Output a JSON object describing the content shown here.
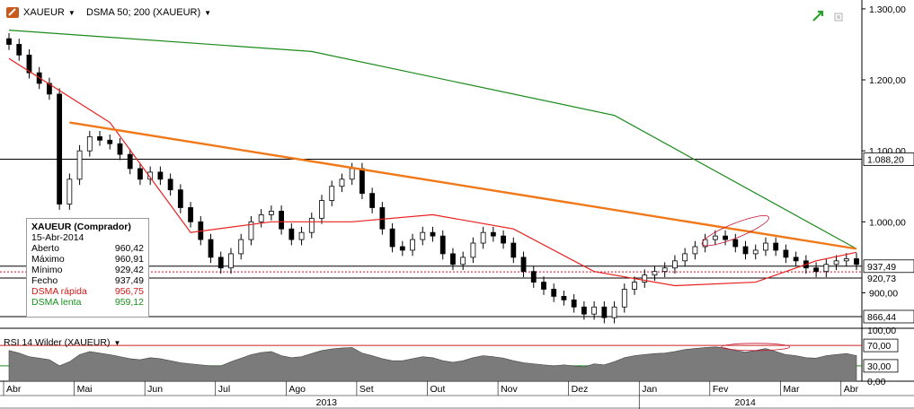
{
  "header": {
    "symbol": "XAUEUR",
    "indicator": "DSMA 50; 200 (XAUEUR)",
    "dropdown_icon": "triangle-down-icon",
    "symbol_icon": "pencil-chart-icon",
    "expand_icon": "green-arrow-icon",
    "window_icon": "restore-icon"
  },
  "info_box": {
    "title": "XAUEUR (Comprador)",
    "date": "15-Abr-2014",
    "rows": [
      {
        "label": "Aberto",
        "value": "960,42",
        "color": "#000000"
      },
      {
        "label": "Máximo",
        "value": "960,91",
        "color": "#000000"
      },
      {
        "label": "Mínimo",
        "value": "929,42",
        "color": "#000000"
      },
      {
        "label": "Fecho",
        "value": "937,49",
        "color": "#000000"
      },
      {
        "label": "DSMA rápida",
        "value": "956,75",
        "color": "#d01818"
      },
      {
        "label": "DSMA lenta",
        "value": "959,12",
        "color": "#18901c"
      }
    ]
  },
  "rsi_panel": {
    "title": "RSI 14 Wilder (XAUEUR)",
    "levels": [
      "100,00",
      "70,00",
      "30,00",
      "0,00"
    ]
  },
  "colors": {
    "fast_ma": "#e8211f",
    "slow_ma": "#1b8a1b",
    "trendline": "#f07818",
    "rsi_fill": "#7b7b7b",
    "highlight": "#c8102e"
  },
  "chart_data": {
    "type": "candlestick",
    "title": "XAUEUR",
    "ylim": [
      850,
      1310
    ],
    "y_ticks": [
      "1.300,00",
      "1.200,00",
      "1.100,00",
      "1.000,00",
      "900,00"
    ],
    "y_tick_values": [
      1300,
      1200,
      1100,
      1000,
      900
    ],
    "price_labels": [
      {
        "value": 1088.2,
        "text": "1.088,20",
        "style": "boxed"
      },
      {
        "value": 937.49,
        "text": "937,49",
        "style": "boxed"
      },
      {
        "value": 920.73,
        "text": "920,73",
        "style": "plain"
      },
      {
        "value": 866.44,
        "text": "866,44",
        "style": "boxed"
      }
    ],
    "horizontal_lines": [
      1088.2,
      937.49,
      920.73,
      866.44
    ],
    "x_months": [
      "Abr",
      "Mai",
      "Jun",
      "Jul",
      "Ago",
      "Set",
      "Out",
      "Nov",
      "Dez",
      "Jan",
      "Fev",
      "Mar",
      "Abr"
    ],
    "x_years": [
      "2013",
      "2014"
    ],
    "close_series": [
      1250,
      1235,
      1210,
      1195,
      1180,
      1025,
      1060,
      1100,
      1120,
      1115,
      1110,
      1095,
      1075,
      1060,
      1070,
      1060,
      1045,
      1020,
      1000,
      975,
      950,
      935,
      955,
      975,
      1000,
      1010,
      1015,
      990,
      975,
      985,
      1005,
      1030,
      1050,
      1060,
      1075,
      1040,
      1020,
      990,
      965,
      960,
      975,
      985,
      980,
      955,
      940,
      950,
      970,
      985,
      980,
      970,
      950,
      930,
      915,
      905,
      895,
      890,
      880,
      870,
      880,
      865,
      880,
      905,
      915,
      925,
      930,
      935,
      945,
      955,
      965,
      975,
      980,
      975,
      965,
      955,
      960,
      970,
      960,
      950,
      945,
      935,
      930,
      940,
      945,
      948,
      940
    ],
    "rsi_series": [
      60,
      55,
      48,
      45,
      42,
      30,
      38,
      52,
      58,
      55,
      52,
      48,
      44,
      42,
      46,
      44,
      40,
      36,
      34,
      32,
      30,
      30,
      38,
      45,
      52,
      56,
      58,
      50,
      46,
      48,
      54,
      60,
      63,
      65,
      66,
      55,
      50,
      44,
      40,
      40,
      44,
      48,
      46,
      40,
      37,
      40,
      46,
      50,
      48,
      45,
      40,
      36,
      34,
      32,
      30,
      32,
      30,
      28,
      34,
      32,
      38,
      46,
      50,
      52,
      54,
      55,
      58,
      62,
      64,
      66,
      67,
      65,
      60,
      57,
      60,
      64,
      58,
      52,
      50,
      46,
      45,
      50,
      52,
      54,
      50
    ],
    "slow_ma_points": [
      [
        0,
        1270
      ],
      [
        30,
        1240
      ],
      [
        60,
        1150
      ],
      [
        84,
        962
      ]
    ],
    "fast_ma_points": [
      [
        0,
        1230
      ],
      [
        10,
        1140
      ],
      [
        18,
        985
      ],
      [
        26,
        1000
      ],
      [
        34,
        1000
      ],
      [
        42,
        1010
      ],
      [
        50,
        990
      ],
      [
        58,
        930
      ],
      [
        66,
        910
      ],
      [
        74,
        915
      ],
      [
        80,
        945
      ],
      [
        84,
        957
      ]
    ],
    "trendline": {
      "from": [
        6,
        1140
      ],
      "to": [
        84,
        962
      ]
    },
    "xaxis_label": "",
    "yaxis_label": ""
  }
}
